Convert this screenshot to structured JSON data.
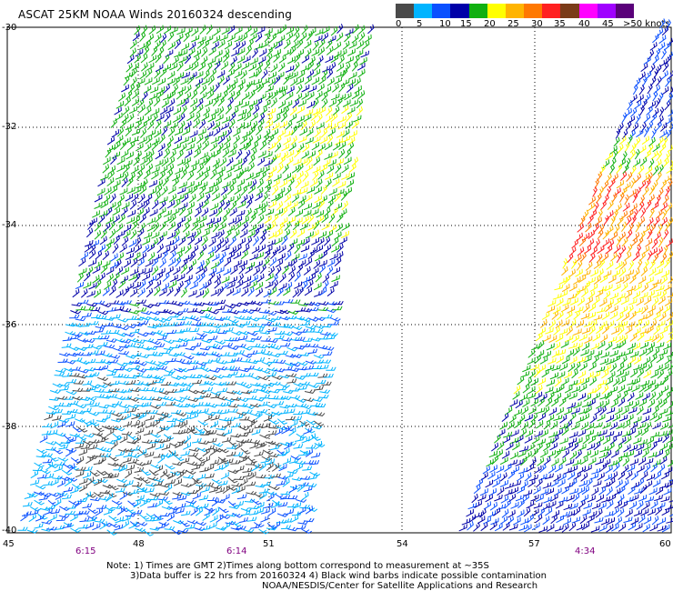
{
  "title": "ASCAT 25KM NOAA Winds 20160324 descending",
  "legend": {
    "colors": [
      "#4a4a4a",
      "#00b4ff",
      "#0a50ff",
      "#0000a8",
      "#10b010",
      "#ffff00",
      "#ffb400",
      "#ff7800",
      "#ff2020",
      "#7a3b18",
      "#ff00ff",
      "#a000ff",
      "#5a007a"
    ],
    "labels": [
      "0",
      "5",
      "10",
      "15",
      "20",
      "25",
      "30",
      "35",
      "40",
      "45",
      ">50 knots"
    ]
  },
  "axes": {
    "y_labels": [
      "-30",
      "-32",
      "-34",
      "-36",
      "-38",
      "-40"
    ],
    "x_labels": [
      "45",
      "48",
      "51",
      "54",
      "57",
      "60"
    ]
  },
  "pass_times": [
    "6:15",
    "6:14",
    "4:34"
  ],
  "notes": [
    "Note: 1) Times are GMT 2)Times along bottom correspond to measurement at ~35S",
    "3)Data buffer is 22 hrs from 20160324 4) Black wind barbs indicate possible contamination",
    "NOAA/NESDIS/Center for Satellite Applications and Research"
  ]
}
